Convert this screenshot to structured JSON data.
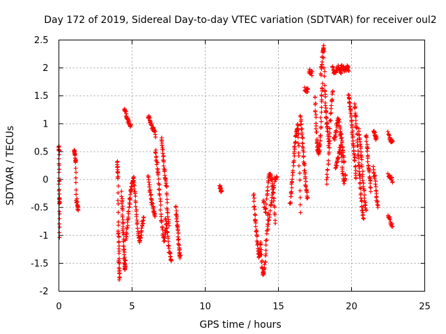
{
  "chart_data": {
    "type": "scatter",
    "title": "Day 172 of 2019, Sidereal Day-to-day VTEC variation (SDTVAR) for receiver oul2",
    "xlabel": "GPS time / hours",
    "ylabel": "SDTVAR / TECUs",
    "xlim": [
      0,
      25
    ],
    "ylim": [
      -2,
      2.5
    ],
    "xticks": [
      0,
      5,
      10,
      15,
      20,
      25
    ],
    "yticks": [
      -2,
      -1.5,
      -1,
      -0.5,
      0,
      0.5,
      1,
      1.5,
      2,
      2.5
    ],
    "xtick_labels": [
      "0",
      "5",
      "10",
      "15",
      "20",
      "25"
    ],
    "ytick_labels": [
      "-2",
      "-1.5",
      "-1",
      "-0.5",
      "0",
      "0.5",
      "1",
      "1.5",
      "2",
      "2.5"
    ],
    "grid": true,
    "marker": "+",
    "color": "#ff0000",
    "segments": [
      {
        "x0": 0.0,
        "x1": 0.05,
        "y": [
          0.58,
          0.52,
          0.03,
          -0.3,
          -0.45,
          -1.03
        ]
      },
      {
        "x0": 1.05,
        "x1": 1.3,
        "y": [
          0.52,
          0.45,
          0.3,
          -0.35,
          -0.45,
          -0.55
        ]
      },
      {
        "x0": 4.0,
        "x1": 4.15,
        "y": [
          0.33,
          0.15,
          0.05,
          -0.85,
          -1.1,
          -1.45,
          -1.65,
          -1.8
        ]
      },
      {
        "x0": 4.3,
        "x1": 4.55,
        "y": [
          -0.25,
          -0.5,
          -0.8,
          -1.0,
          -1.25,
          -1.5,
          -1.6,
          -1.45
        ]
      },
      {
        "x0": 4.45,
        "x1": 4.9,
        "y": [
          1.27,
          1.2,
          1.1,
          1.0,
          0.95
        ]
      },
      {
        "x0": 4.55,
        "x1": 5.1,
        "y": [
          -1.05,
          -0.95,
          -0.7,
          -0.45,
          -0.2,
          -0.05,
          0.02
        ]
      },
      {
        "x0": 5.1,
        "x1": 5.8,
        "y": [
          -0.05,
          -0.25,
          -0.6,
          -0.9,
          -1.1,
          -1.0,
          -0.8,
          -0.7
        ]
      },
      {
        "x0": 6.1,
        "x1": 6.6,
        "y": [
          1.15,
          1.05,
          0.95,
          0.9,
          0.8
        ]
      },
      {
        "x0": 6.1,
        "x1": 6.6,
        "y": [
          0.05,
          -0.2,
          -0.4,
          -0.55,
          -0.65
        ]
      },
      {
        "x0": 6.6,
        "x1": 7.3,
        "y": [
          0.5,
          0.3,
          0.05,
          -0.3,
          -0.7,
          -1.0,
          -1.1,
          -0.9
        ]
      },
      {
        "x0": 7.0,
        "x1": 7.5,
        "y": [
          0.72,
          0.55,
          0.3,
          0.05,
          -0.1,
          -0.55,
          -0.8
        ]
      },
      {
        "x0": 7.3,
        "x1": 7.7,
        "y": [
          -0.7,
          -0.9,
          -1.2,
          -1.35,
          -1.45
        ]
      },
      {
        "x0": 8.0,
        "x1": 8.3,
        "y": [
          -0.5,
          -0.7,
          -0.9,
          -1.1,
          -1.3,
          -1.4
        ]
      },
      {
        "x0": 11.0,
        "x1": 11.1,
        "y": [
          -0.12,
          -0.18,
          -0.22
        ]
      },
      {
        "x0": 13.3,
        "x1": 13.8,
        "y": [
          -0.25,
          -0.6,
          -0.9,
          -1.1,
          -1.3,
          -1.4,
          -1.1
        ]
      },
      {
        "x0": 13.8,
        "x1": 14.3,
        "y": [
          -1.2,
          -1.6,
          -1.7,
          -1.45,
          -1.0,
          -0.6
        ]
      },
      {
        "x0": 14.0,
        "x1": 14.8,
        "y": [
          -0.35,
          -0.6,
          -0.2,
          0.05,
          0.1,
          -0.05,
          -0.3,
          -0.8
        ]
      },
      {
        "x0": 14.3,
        "x1": 14.9,
        "y": [
          -0.85,
          -0.5,
          -0.3,
          0.0,
          0.05
        ]
      },
      {
        "x0": 15.8,
        "x1": 16.5,
        "y": [
          -0.45,
          -0.2,
          0.1,
          0.4,
          0.65,
          0.85,
          1.0,
          0.4,
          -0.6
        ]
      },
      {
        "x0": 16.5,
        "x1": 17.0,
        "y": [
          1.15,
          0.9,
          0.6,
          0.3,
          0.05,
          -0.2,
          -0.35
        ]
      },
      {
        "x0": 16.8,
        "x1": 17.0,
        "y": [
          1.62,
          1.6
        ]
      },
      {
        "x0": 17.1,
        "x1": 17.3,
        "y": [
          1.95,
          1.9
        ]
      },
      {
        "x0": 17.5,
        "x1": 18.0,
        "y": [
          1.5,
          1.1,
          0.7,
          0.55,
          0.45,
          0.6,
          0.8,
          1.4,
          1.7
        ]
      },
      {
        "x0": 17.9,
        "x1": 18.45,
        "y": [
          1.9,
          2.1,
          2.3,
          2.37,
          1.6,
          1.25,
          1.0,
          0.85,
          0.6
        ]
      },
      {
        "x0": 18.3,
        "x1": 18.7,
        "y": [
          -0.05,
          0.3,
          0.8,
          1.3,
          1.6
        ]
      },
      {
        "x0": 18.7,
        "x1": 19.3,
        "y": [
          2.0,
          1.9,
          1.95,
          2.02,
          1.96,
          1.9
        ]
      },
      {
        "x0": 18.8,
        "x1": 19.5,
        "y": [
          0.7,
          0.8,
          1.0,
          1.1,
          0.9,
          0.75,
          0.5,
          0.3
        ]
      },
      {
        "x0": 19.3,
        "x1": 19.8,
        "y": [
          2.02,
          2.0,
          1.95,
          2.03,
          1.98
        ]
      },
      {
        "x0": 18.9,
        "x1": 19.6,
        "y": [
          0.2,
          0.3,
          0.45,
          0.6,
          0.2,
          -0.05,
          0.05
        ]
      },
      {
        "x0": 19.8,
        "x1": 20.3,
        "y": [
          1.5,
          1.4,
          1.2,
          1.0,
          0.75,
          0.5,
          0.3,
          0.0
        ]
      },
      {
        "x0": 20.2,
        "x1": 20.8,
        "y": [
          1.35,
          1.1,
          0.8,
          0.4,
          0.1,
          -0.25,
          -0.5,
          -0.7
        ]
      },
      {
        "x0": 20.5,
        "x1": 21.0,
        "y": [
          0.9,
          0.6,
          0.35,
          -0.05,
          -0.35,
          -0.55
        ]
      },
      {
        "x0": 21.0,
        "x1": 21.3,
        "y": [
          0.8,
          0.55,
          0.25,
          0.05,
          -0.2
        ]
      },
      {
        "x0": 21.5,
        "x1": 21.7,
        "y": [
          0.85,
          0.8,
          0.72
        ]
      },
      {
        "x0": 21.5,
        "x1": 21.8,
        "y": [
          0.2,
          0.0,
          -0.3,
          -0.5
        ]
      },
      {
        "x0": 22.5,
        "x1": 22.8,
        "y": [
          0.82,
          0.72,
          0.65
        ]
      },
      {
        "x0": 22.5,
        "x1": 22.8,
        "y": [
          0.1,
          0.05,
          -0.05
        ]
      },
      {
        "x0": 22.5,
        "x1": 22.8,
        "y": [
          -0.65,
          -0.75,
          -0.85
        ]
      }
    ]
  }
}
